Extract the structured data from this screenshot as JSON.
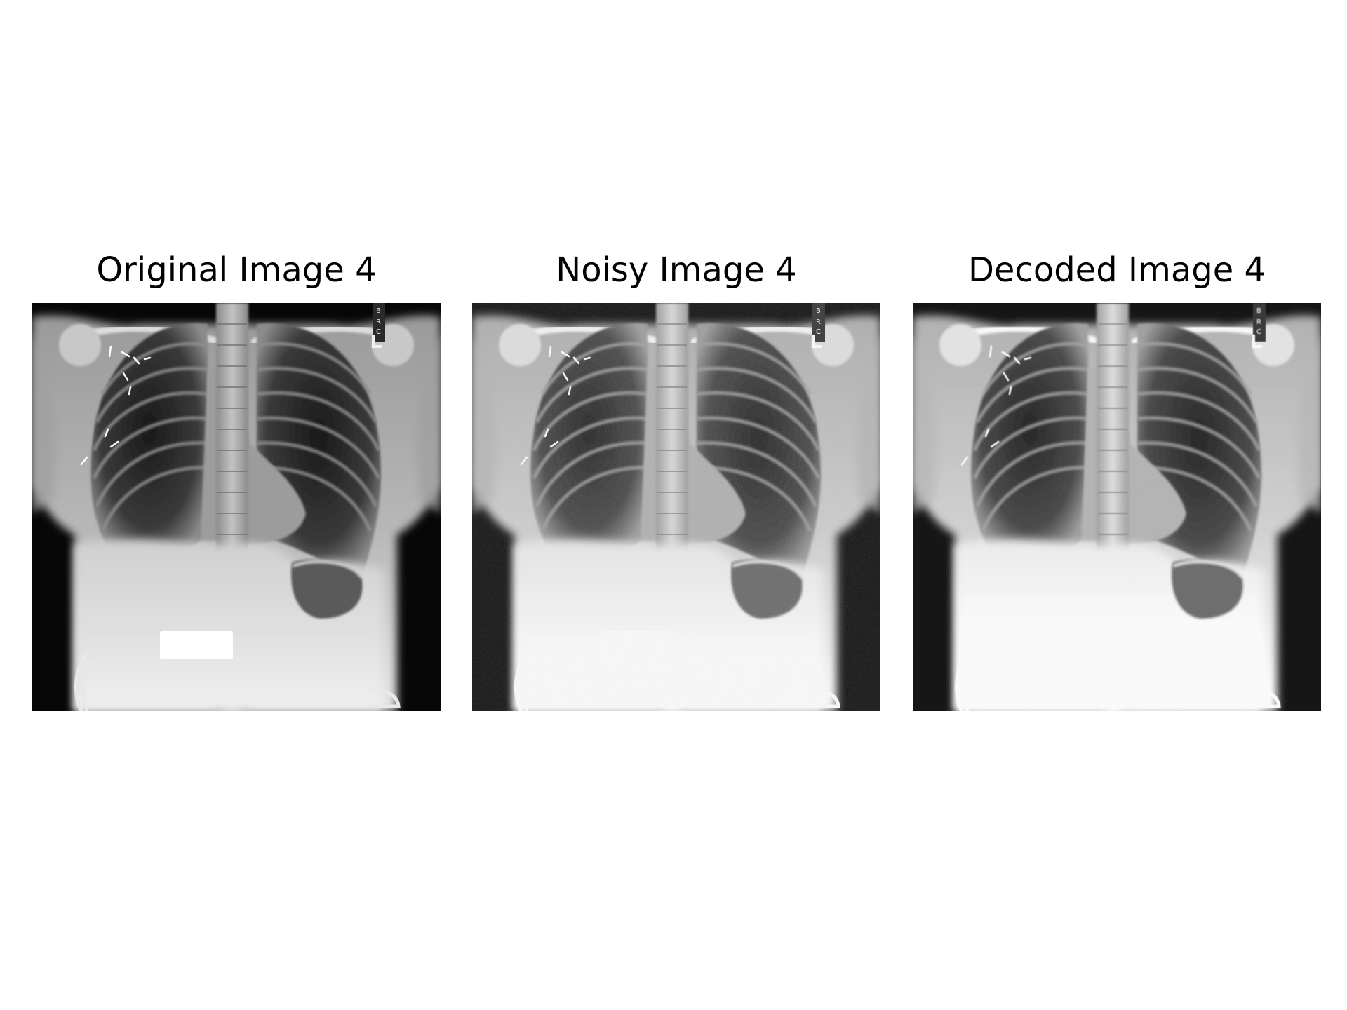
{
  "figure": {
    "panels": [
      {
        "title": "Original Image 4",
        "variant": "original",
        "side_marker": "L"
      },
      {
        "title": "Noisy Image 4",
        "variant": "noisy",
        "side_marker": "L"
      },
      {
        "title": "Decoded Image 4",
        "variant": "decoded",
        "side_marker": "L"
      }
    ]
  },
  "colors": {
    "background": "#ffffff",
    "title_text": "#000000"
  }
}
